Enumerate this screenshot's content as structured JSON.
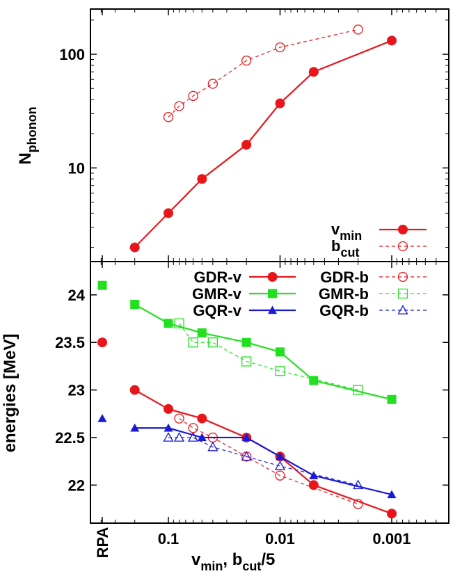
{
  "chart_data": [
    {
      "type": "line",
      "panel": "top",
      "y_scale": "log",
      "ylim": [
        1.5,
        250
      ],
      "ylabel_main": "N",
      "ylabel_sub": "phonon",
      "y_ticks": [
        {
          "value": 10,
          "label": "10"
        },
        {
          "value": 100,
          "label": "100"
        }
      ],
      "legend_placement": "bottom-right",
      "series": [
        {
          "legend_main": "v",
          "legend_sub": "min",
          "color": "#e8161b",
          "style": "solid",
          "marker": "filled-circle",
          "points": [
            [
              0.2,
              2
            ],
            [
              0.1,
              4
            ],
            [
              0.05,
              8
            ],
            [
              0.02,
              16
            ],
            [
              0.01,
              37
            ],
            [
              0.005,
              70
            ],
            [
              0.001,
              132
            ]
          ]
        },
        {
          "legend_main": "b",
          "legend_sub": "cut",
          "color": "#e8161b",
          "style": "dashed",
          "marker": "open-circle",
          "points": [
            [
              0.1,
              28
            ],
            [
              0.08,
              35
            ],
            [
              0.06,
              43
            ],
            [
              0.04,
              55
            ],
            [
              0.02,
              88
            ],
            [
              0.01,
              115
            ],
            [
              0.002,
              165
            ]
          ]
        }
      ]
    },
    {
      "type": "line",
      "panel": "bottom",
      "ylim": [
        21.6,
        24.35
      ],
      "ylabel": "energies [MeV]",
      "y_ticks": [
        {
          "value": 22,
          "label": "22"
        },
        {
          "value": 22.5,
          "label": "22.5"
        },
        {
          "value": 23,
          "label": "23"
        },
        {
          "value": 23.5,
          "label": "23.5"
        },
        {
          "value": 24,
          "label": "24"
        }
      ],
      "xlabel": "v_min, b_cut/5",
      "xlabel_parts": {
        "v": "v",
        "min": "min",
        "sep": ", b",
        "cut": "cut",
        "tail": "/5"
      },
      "x_ticks": [
        {
          "value": 0.1,
          "label": "0.1"
        },
        {
          "value": 0.01,
          "label": "0.01"
        },
        {
          "value": 0.001,
          "label": "0.001"
        }
      ],
      "x_special_label": "RPA",
      "legend_placement": "top",
      "series": [
        {
          "name": "GDR-v",
          "color": "#e8161b",
          "style": "solid",
          "marker": "filled-circle",
          "rpa": 23.5,
          "points": [
            [
              0.2,
              23.0
            ],
            [
              0.1,
              22.8
            ],
            [
              0.05,
              22.7
            ],
            [
              0.02,
              22.5
            ],
            [
              0.01,
              22.3
            ],
            [
              0.005,
              22.0
            ],
            [
              0.001,
              21.7
            ]
          ]
        },
        {
          "name": "GDR-b",
          "color": "#e8161b",
          "style": "dashed",
          "marker": "open-circle",
          "points": [
            [
              0.08,
              22.7
            ],
            [
              0.06,
              22.6
            ],
            [
              0.04,
              22.5
            ],
            [
              0.02,
              22.3
            ],
            [
              0.01,
              22.1
            ],
            [
              0.002,
              21.8
            ]
          ]
        },
        {
          "name": "GMR-v",
          "color": "#22e01f",
          "style": "solid",
          "marker": "filled-square",
          "rpa": 24.1,
          "points": [
            [
              0.2,
              23.9
            ],
            [
              0.1,
              23.7
            ],
            [
              0.05,
              23.6
            ],
            [
              0.02,
              23.5
            ],
            [
              0.01,
              23.4
            ],
            [
              0.005,
              23.1
            ],
            [
              0.001,
              22.9
            ]
          ]
        },
        {
          "name": "GMR-b",
          "color": "#22e01f",
          "style": "dashed",
          "marker": "open-square",
          "points": [
            [
              0.08,
              23.7
            ],
            [
              0.06,
              23.5
            ],
            [
              0.04,
              23.5
            ],
            [
              0.02,
              23.3
            ],
            [
              0.01,
              23.2
            ],
            [
              0.002,
              23.0
            ]
          ]
        },
        {
          "name": "GQR-v",
          "color": "#1a1ad6",
          "style": "solid",
          "marker": "filled-triangle",
          "rpa": 22.7,
          "points": [
            [
              0.2,
              22.6
            ],
            [
              0.1,
              22.6
            ],
            [
              0.05,
              22.5
            ],
            [
              0.02,
              22.5
            ],
            [
              0.01,
              22.3
            ],
            [
              0.005,
              22.1
            ],
            [
              0.001,
              21.9
            ]
          ]
        },
        {
          "name": "GQR-b",
          "color": "#1a1ad6",
          "style": "dashed",
          "marker": "open-triangle",
          "points": [
            [
              0.1,
              22.5
            ],
            [
              0.08,
              22.5
            ],
            [
              0.06,
              22.5
            ],
            [
              0.04,
              22.4
            ],
            [
              0.02,
              22.3
            ],
            [
              0.01,
              22.2
            ],
            [
              0.002,
              22.0
            ]
          ]
        }
      ]
    }
  ]
}
